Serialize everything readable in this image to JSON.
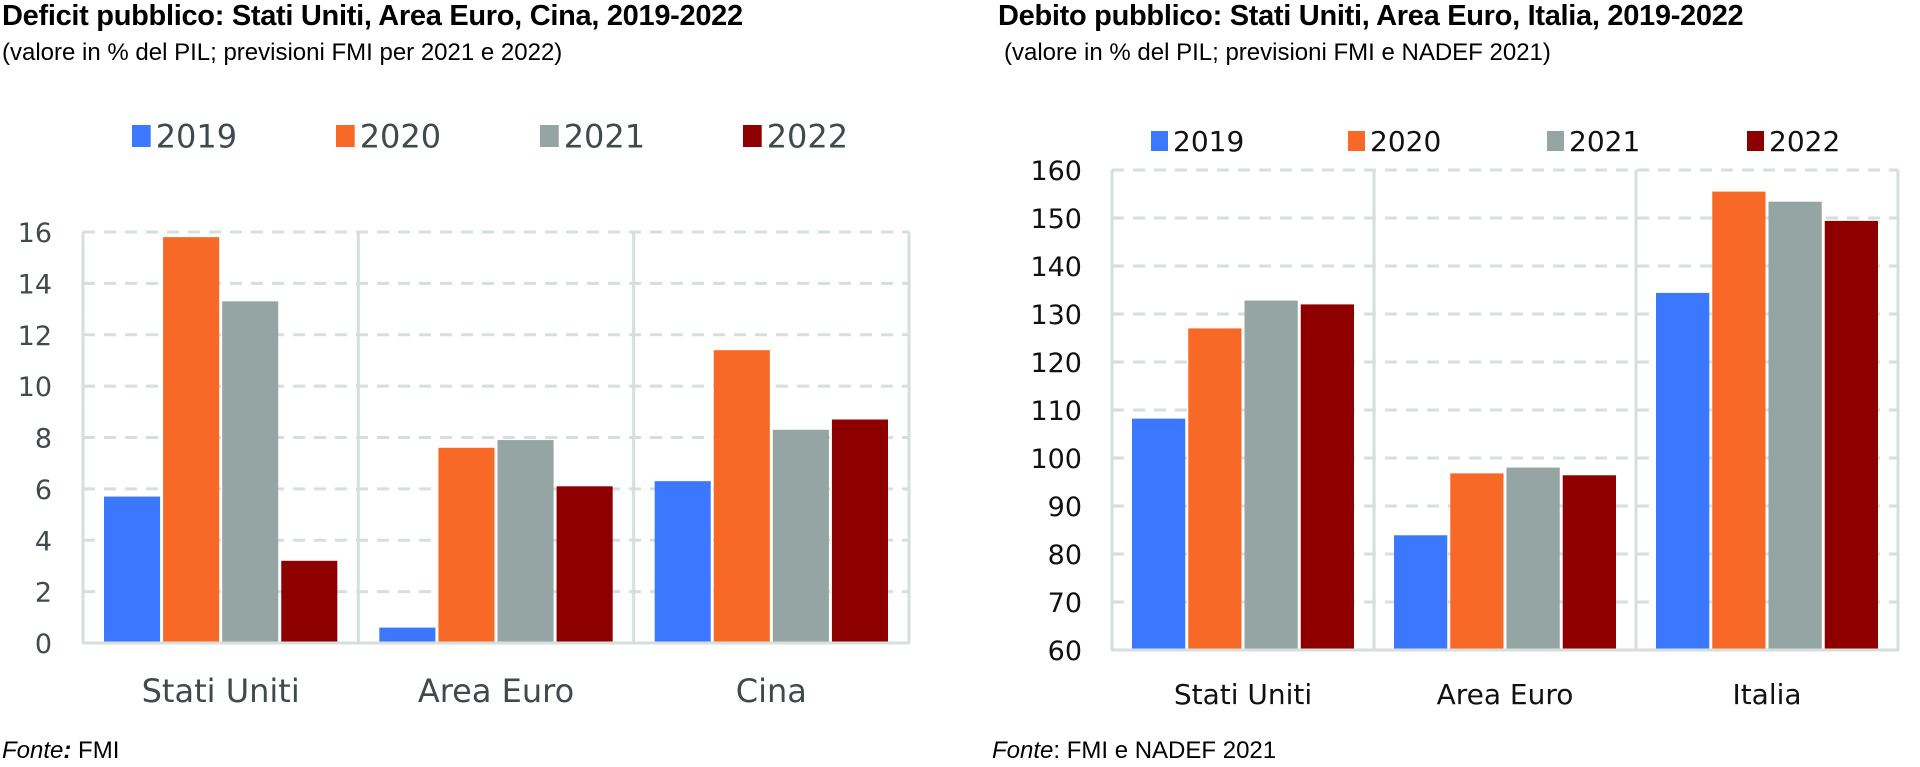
{
  "chart_data": [
    {
      "type": "bar",
      "title": "Deficit pubblico: Stati Uniti, Area Euro, Cina, 2019-2022",
      "subtitle": "(valore in % del PIL; previsioni FMI per 2021 e 2022)",
      "source_label": "Fonte",
      "source_sep": ":",
      "source_text": " FMI",
      "xlabel": "",
      "ylabel": "",
      "categories": [
        "Stati Uniti",
        "Area Euro",
        "Cina"
      ],
      "series": [
        {
          "name": "2019",
          "color": "#3b78ff",
          "values": [
            5.7,
            0.6,
            6.3
          ]
        },
        {
          "name": "2020",
          "color": "#f86928",
          "values": [
            15.8,
            7.6,
            11.4
          ]
        },
        {
          "name": "2021",
          "color": "#95a5a3",
          "values": [
            13.3,
            7.9,
            8.3
          ]
        },
        {
          "name": "2022",
          "color": "#8e0000",
          "values": [
            3.2,
            6.1,
            8.7
          ]
        }
      ],
      "ylim": [
        0,
        16
      ],
      "yticks": [
        0,
        2,
        4,
        6,
        8,
        10,
        12,
        14,
        16
      ],
      "grid": "horizontal-dashed",
      "legend_position": "top"
    },
    {
      "type": "bar",
      "title": "Debito pubblico: Stati Uniti, Area Euro, Italia, 2019-2022",
      "subtitle": "(valore in % del PIL; previsioni FMI e NADEF 2021)",
      "source_label": "Fonte",
      "source_sep": ":",
      "source_text": " FMI e NADEF 2021",
      "xlabel": "",
      "ylabel": "",
      "categories": [
        "Stati Uniti",
        "Area Euro",
        "Italia"
      ],
      "series": [
        {
          "name": "2019",
          "color": "#3b78ff",
          "values": [
            108.2,
            83.9,
            134.4
          ]
        },
        {
          "name": "2020",
          "color": "#f86928",
          "values": [
            127.0,
            96.8,
            155.5
          ]
        },
        {
          "name": "2021",
          "color": "#95a5a3",
          "values": [
            132.8,
            98.0,
            153.4
          ]
        },
        {
          "name": "2022",
          "color": "#8e0000",
          "values": [
            132.0,
            96.4,
            149.4
          ]
        }
      ],
      "ylim": [
        60,
        160
      ],
      "yticks": [
        60,
        70,
        80,
        90,
        100,
        110,
        120,
        130,
        140,
        150,
        160
      ],
      "grid": "horizontal-dashed",
      "legend_position": "top"
    }
  ]
}
